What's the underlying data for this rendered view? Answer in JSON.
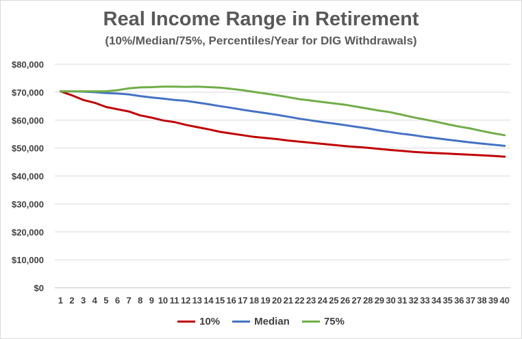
{
  "chart_data": {
    "type": "line",
    "title": "Real Income Range in Retirement",
    "subtitle": "(10%/Median/75%, Percentiles/Year for DIG Withdrawals)",
    "xlabel": "",
    "ylabel": "",
    "x": [
      1,
      2,
      3,
      4,
      5,
      6,
      7,
      8,
      9,
      10,
      11,
      12,
      13,
      14,
      15,
      16,
      17,
      18,
      19,
      20,
      21,
      22,
      23,
      24,
      25,
      26,
      27,
      28,
      29,
      30,
      31,
      32,
      33,
      34,
      35,
      36,
      37,
      38,
      39,
      40
    ],
    "ylim": [
      0,
      80000
    ],
    "yticks": [
      0,
      10000,
      20000,
      30000,
      40000,
      50000,
      60000,
      70000,
      80000
    ],
    "ytick_labels": [
      "$0",
      "$10,000",
      "$20,000",
      "$30,000",
      "$40,000",
      "$50,000",
      "$60,000",
      "$70,000",
      "$80,000"
    ],
    "grid": true,
    "legend_position": "bottom",
    "series": [
      {
        "name": "10%",
        "color": "#c00000",
        "values": [
          70300,
          68900,
          67200,
          66200,
          64700,
          63900,
          63100,
          61700,
          60900,
          59900,
          59300,
          58300,
          57500,
          56700,
          55800,
          55200,
          54600,
          54000,
          53600,
          53200,
          52700,
          52300,
          51900,
          51500,
          51100,
          50700,
          50400,
          50100,
          49700,
          49300,
          49000,
          48600,
          48400,
          48200,
          48000,
          47800,
          47600,
          47400,
          47200,
          46900
        ]
      },
      {
        "name": "Median",
        "color": "#4472c4",
        "values": [
          70300,
          70300,
          70200,
          70000,
          69700,
          69500,
          69200,
          68600,
          68100,
          67700,
          67200,
          66900,
          66300,
          65700,
          65000,
          64400,
          63700,
          63100,
          62500,
          61900,
          61200,
          60500,
          59900,
          59300,
          58800,
          58200,
          57600,
          57000,
          56300,
          55700,
          55100,
          54600,
          54000,
          53500,
          53000,
          52500,
          52000,
          51600,
          51200,
          50800
        ]
      },
      {
        "name": "75%",
        "color": "#70ad47",
        "values": [
          70300,
          70300,
          70300,
          70300,
          70300,
          70700,
          71400,
          71700,
          71800,
          72000,
          72000,
          71900,
          72000,
          71800,
          71600,
          71200,
          70700,
          70100,
          69500,
          68900,
          68200,
          67500,
          67000,
          66500,
          66000,
          65500,
          64800,
          64100,
          63400,
          62800,
          61900,
          61000,
          60200,
          59400,
          58500,
          57700,
          57000,
          56100,
          55300,
          54600
        ]
      }
    ]
  }
}
